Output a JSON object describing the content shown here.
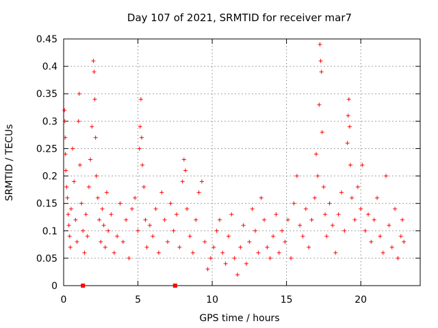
{
  "chart_data": {
    "type": "scatter",
    "title": "Day 107 of 2021, SRMTID for receiver mar7",
    "xlabel": "GPS time / hours",
    "ylabel": "SRMTID / TECUs",
    "xlim": [
      0,
      24
    ],
    "ylim": [
      0,
      0.45
    ],
    "x_ticks": [
      0,
      5,
      10,
      15,
      20
    ],
    "x_tick_labels": [
      "0",
      "5",
      "10",
      "15",
      "20"
    ],
    "y_ticks": [
      0,
      0.05,
      0.1,
      0.15,
      0.2,
      0.25,
      0.3,
      0.35,
      0.4,
      0.45
    ],
    "y_tick_labels": [
      "0",
      "0.05",
      "0.1",
      "0.15",
      "0.2",
      "0.25",
      "0.3",
      "0.35",
      "0.4",
      "0.45"
    ],
    "grid": true,
    "marker": "plus",
    "color": "#ff0000",
    "series": [
      {
        "name": "SRMTID",
        "points": [
          [
            0.05,
            0.32
          ],
          [
            0.08,
            0.3
          ],
          [
            0.1,
            0.27
          ],
          [
            0.12,
            0.24
          ],
          [
            0.15,
            0.21
          ],
          [
            0.2,
            0.18
          ],
          [
            0.25,
            0.16
          ],
          [
            0.3,
            0.13
          ],
          [
            0.35,
            0.11
          ],
          [
            0.4,
            0.09
          ],
          [
            0.45,
            0.07
          ],
          [
            0.5,
            0.14
          ],
          [
            0.6,
            0.25
          ],
          [
            0.7,
            0.19
          ],
          [
            0.8,
            0.12
          ],
          [
            0.9,
            0.08
          ],
          [
            1.0,
            0.3
          ],
          [
            1.05,
            0.35
          ],
          [
            1.1,
            0.22
          ],
          [
            1.2,
            0.15
          ],
          [
            1.3,
            0.1
          ],
          [
            1.4,
            0.06
          ],
          [
            1.5,
            0.13
          ],
          [
            1.6,
            0.09
          ],
          [
            1.7,
            0.18
          ],
          [
            1.8,
            0.23
          ],
          [
            1.9,
            0.29
          ],
          [
            2.0,
            0.41
          ],
          [
            2.05,
            0.39
          ],
          [
            2.1,
            0.34
          ],
          [
            2.15,
            0.27
          ],
          [
            2.2,
            0.2
          ],
          [
            2.3,
            0.16
          ],
          [
            2.4,
            0.12
          ],
          [
            2.5,
            0.08
          ],
          [
            2.6,
            0.14
          ],
          [
            2.7,
            0.11
          ],
          [
            2.8,
            0.07
          ],
          [
            2.9,
            0.17
          ],
          [
            3.0,
            0.1
          ],
          [
            3.2,
            0.13
          ],
          [
            3.4,
            0.06
          ],
          [
            3.6,
            0.09
          ],
          [
            3.8,
            0.15
          ],
          [
            4.0,
            0.08
          ],
          [
            4.2,
            0.12
          ],
          [
            4.4,
            0.05
          ],
          [
            4.6,
            0.14
          ],
          [
            4.8,
            0.16
          ],
          [
            5.0,
            0.1
          ],
          [
            5.1,
            0.25
          ],
          [
            5.15,
            0.29
          ],
          [
            5.2,
            0.34
          ],
          [
            5.25,
            0.27
          ],
          [
            5.3,
            0.22
          ],
          [
            5.4,
            0.18
          ],
          [
            5.5,
            0.12
          ],
          [
            5.6,
            0.07
          ],
          [
            5.8,
            0.11
          ],
          [
            6.0,
            0.09
          ],
          [
            6.2,
            0.14
          ],
          [
            6.4,
            0.06
          ],
          [
            6.6,
            0.17
          ],
          [
            6.8,
            0.12
          ],
          [
            7.0,
            0.08
          ],
          [
            7.2,
            0.15
          ],
          [
            7.4,
            0.1
          ],
          [
            7.6,
            0.13
          ],
          [
            7.8,
            0.07
          ],
          [
            8.0,
            0.19
          ],
          [
            8.1,
            0.23
          ],
          [
            8.2,
            0.21
          ],
          [
            8.3,
            0.14
          ],
          [
            8.5,
            0.09
          ],
          [
            8.7,
            0.06
          ],
          [
            8.9,
            0.12
          ],
          [
            9.1,
            0.17
          ],
          [
            9.3,
            0.19
          ],
          [
            9.5,
            0.08
          ],
          [
            9.7,
            0.03
          ],
          [
            9.9,
            0.05
          ],
          [
            10.1,
            0.07
          ],
          [
            10.3,
            0.1
          ],
          [
            10.5,
            0.12
          ],
          [
            10.7,
            0.06
          ],
          [
            10.9,
            0.04
          ],
          [
            11.1,
            0.09
          ],
          [
            11.3,
            0.13
          ],
          [
            11.5,
            0.05
          ],
          [
            11.7,
            0.02
          ],
          [
            11.9,
            0.07
          ],
          [
            12.1,
            0.11
          ],
          [
            12.3,
            0.04
          ],
          [
            12.5,
            0.08
          ],
          [
            12.7,
            0.14
          ],
          [
            12.9,
            0.1
          ],
          [
            13.1,
            0.06
          ],
          [
            13.3,
            0.16
          ],
          [
            13.5,
            0.12
          ],
          [
            13.7,
            0.07
          ],
          [
            13.9,
            0.05
          ],
          [
            14.1,
            0.09
          ],
          [
            14.3,
            0.13
          ],
          [
            14.5,
            0.06
          ],
          [
            14.7,
            0.1
          ],
          [
            14.9,
            0.08
          ],
          [
            15.1,
            0.12
          ],
          [
            15.3,
            0.05
          ],
          [
            15.5,
            0.15
          ],
          [
            15.7,
            0.2
          ],
          [
            15.9,
            0.11
          ],
          [
            16.1,
            0.09
          ],
          [
            16.3,
            0.14
          ],
          [
            16.5,
            0.07
          ],
          [
            16.7,
            0.12
          ],
          [
            16.9,
            0.16
          ],
          [
            17.0,
            0.24
          ],
          [
            17.1,
            0.2
          ],
          [
            17.2,
            0.33
          ],
          [
            17.25,
            0.44
          ],
          [
            17.3,
            0.41
          ],
          [
            17.35,
            0.39
          ],
          [
            17.4,
            0.28
          ],
          [
            17.5,
            0.18
          ],
          [
            17.6,
            0.13
          ],
          [
            17.7,
            0.09
          ],
          [
            17.9,
            0.15
          ],
          [
            18.1,
            0.11
          ],
          [
            18.3,
            0.06
          ],
          [
            18.5,
            0.13
          ],
          [
            18.7,
            0.17
          ],
          [
            18.9,
            0.1
          ],
          [
            19.1,
            0.26
          ],
          [
            19.15,
            0.31
          ],
          [
            19.2,
            0.34
          ],
          [
            19.25,
            0.29
          ],
          [
            19.3,
            0.22
          ],
          [
            19.4,
            0.16
          ],
          [
            19.6,
            0.12
          ],
          [
            19.8,
            0.18
          ],
          [
            20.0,
            0.14
          ],
          [
            20.1,
            0.22
          ],
          [
            20.3,
            0.1
          ],
          [
            20.5,
            0.13
          ],
          [
            20.7,
            0.08
          ],
          [
            20.9,
            0.12
          ],
          [
            21.1,
            0.16
          ],
          [
            21.3,
            0.09
          ],
          [
            21.5,
            0.06
          ],
          [
            21.7,
            0.2
          ],
          [
            21.9,
            0.11
          ],
          [
            22.1,
            0.07
          ],
          [
            22.3,
            0.14
          ],
          [
            22.5,
            0.05
          ],
          [
            22.7,
            0.09
          ],
          [
            22.8,
            0.12
          ],
          [
            22.9,
            0.08
          ]
        ]
      }
    ],
    "axis_markers": {
      "name": "data-gap markers on x-axis",
      "x": [
        1.3,
        7.5
      ],
      "y": 0
    }
  }
}
